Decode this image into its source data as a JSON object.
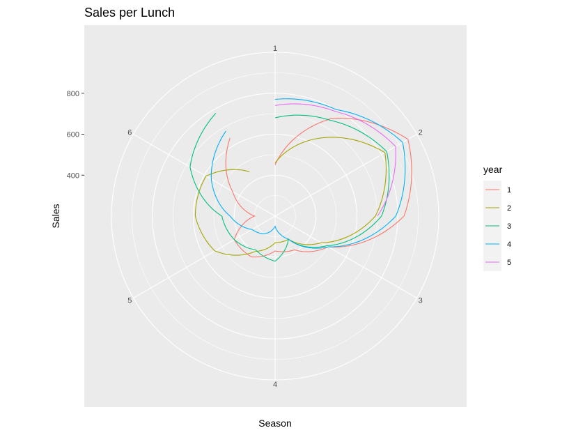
{
  "chart_data": {
    "type": "line",
    "coord": "polar",
    "title": "Sales per Lunch",
    "xlabel": "Season",
    "ylabel": "Sales",
    "x_ticks": [
      "1",
      "2",
      "3",
      "4",
      "5",
      "6"
    ],
    "y_ticks": [
      400,
      600,
      800
    ],
    "ylim": [
      200,
      1000
    ],
    "legend_title": "year",
    "legend_position": "right",
    "grid": true,
    "series": [
      {
        "name": "1",
        "color": "#F8766D",
        "x": [
          1,
          1.5,
          2,
          2.5,
          3,
          3.5,
          4,
          4.5,
          5,
          5.5,
          6,
          6.5
        ],
        "y": [
          450,
          750,
          950,
          830,
          500,
          390,
          370,
          430,
          430,
          300,
          440,
          640
        ]
      },
      {
        "name": "2",
        "color": "#A3A500",
        "x": [
          1,
          1.5,
          2,
          2.5,
          3,
          3.5,
          4,
          4.5,
          5,
          5.5,
          6,
          6.5
        ],
        "y": [
          460,
          640,
          820,
          690,
          460,
          330,
          330,
          400,
          540,
          590,
          590,
          450
        ]
      },
      {
        "name": "3",
        "color": "#00BF7D",
        "x": [
          1,
          1.5,
          2,
          2.5,
          3,
          3.5,
          4,
          4.5,
          5,
          5.5,
          6,
          6.5
        ],
        "y": [
          680,
          740,
          830,
          720,
          490,
          330,
          420,
          390,
          430,
          460,
          680,
          780
        ]
      },
      {
        "name": "4",
        "color": "#00B0F6",
        "x": [
          1,
          1.5,
          2,
          2.5,
          3,
          3.5,
          4,
          4.5,
          5,
          5.5,
          6,
          6.5
        ],
        "y": [
          770,
          800,
          920,
          790,
          500,
          330,
          250,
          300,
          330,
          420,
          560,
          680
        ]
      },
      {
        "name": "5",
        "color": "#E76BF3",
        "x": [
          1,
          1.5,
          2,
          2.5
        ],
        "y": [
          740,
          790,
          880,
          700
        ]
      }
    ]
  }
}
